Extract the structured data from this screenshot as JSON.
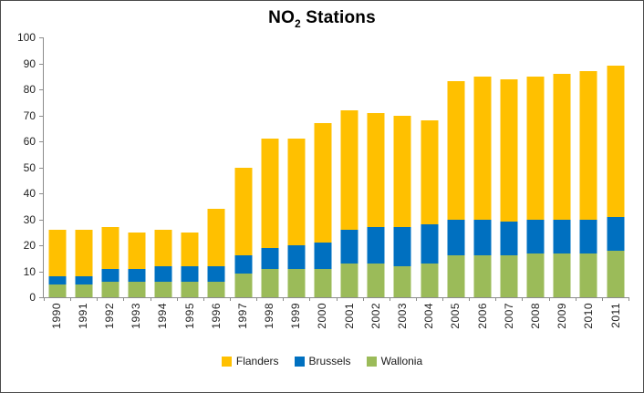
{
  "title": {
    "prefix": "NO",
    "sub": "2",
    "suffix": " Stations"
  },
  "colors": {
    "flanders": "#FFC000",
    "brussels": "#0070C0",
    "wallonia": "#9BBB59",
    "axis": "#8C8C8C",
    "text": "#1F1F1F",
    "frame_border": "#4A4A4A"
  },
  "chart_data": {
    "type": "bar",
    "stacked": true,
    "title": "NO2 Stations",
    "xlabel": "",
    "ylabel": "",
    "ylim": [
      0,
      100
    ],
    "ytick_step": 10,
    "yticks": [
      0,
      10,
      20,
      30,
      40,
      50,
      60,
      70,
      80,
      90,
      100
    ],
    "grid": false,
    "legend_position": "bottom",
    "categories": [
      "1990",
      "1991",
      "1992",
      "1993",
      "1994",
      "1995",
      "1996",
      "1997",
      "1998",
      "1999",
      "2000",
      "2001",
      "2002",
      "2003",
      "2004",
      "2005",
      "2006",
      "2007",
      "2008",
      "2009",
      "2010",
      "2011"
    ],
    "series": [
      {
        "name": "Flanders",
        "color": "#FFC000",
        "values": [
          18,
          18,
          16,
          14,
          14,
          13,
          22,
          34,
          42,
          41,
          46,
          46,
          44,
          43,
          40,
          53,
          55,
          55,
          55,
          56,
          57,
          58
        ]
      },
      {
        "name": "Brussels",
        "color": "#0070C0",
        "values": [
          3,
          3,
          5,
          5,
          6,
          6,
          6,
          7,
          8,
          9,
          10,
          13,
          14,
          15,
          15,
          14,
          14,
          13,
          13,
          13,
          13,
          13
        ]
      },
      {
        "name": "Wallonia",
        "color": "#9BBB59",
        "values": [
          5,
          5,
          6,
          6,
          6,
          6,
          6,
          9,
          11,
          11,
          11,
          13,
          13,
          12,
          13,
          16,
          16,
          16,
          17,
          17,
          17,
          18
        ]
      }
    ],
    "stack_order_top_to_bottom": [
      "Flanders",
      "Brussels",
      "Wallonia"
    ],
    "totals": [
      26,
      26,
      27,
      25,
      26,
      25,
      34,
      50,
      61,
      61,
      67,
      72,
      71,
      70,
      68,
      83,
      85,
      84,
      85,
      86,
      87,
      89
    ],
    "legend": [
      "Flanders",
      "Brussels",
      "Wallonia"
    ]
  }
}
